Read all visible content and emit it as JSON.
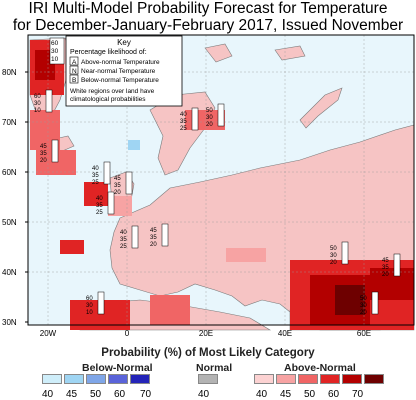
{
  "title": {
    "line1": "IRI Multi-Model Probability Forecast for Temperature",
    "line2": "for December-January-February 2017, Issued November 2016"
  },
  "map": {
    "lat_labels": [
      "80N",
      "70N",
      "60N",
      "50N",
      "40N",
      "30N"
    ],
    "lon_labels": [
      "20W",
      "0",
      "20E",
      "40E",
      "60E"
    ],
    "key": {
      "title": "Key",
      "subtitle": "Percentage likelihood of:",
      "rows": [
        {
          "letter": "A",
          "text": "Above-normal Temperature"
        },
        {
          "letter": "N",
          "text": "Near-normal Temperature"
        },
        {
          "letter": "B",
          "text": "Below-normal Temperature"
        }
      ],
      "note_line1": "White regions over land have",
      "note_line2": "climatological probabilities",
      "sample_values": [
        "60",
        "30",
        "10"
      ]
    },
    "probability_boxes": [
      {
        "a": "60",
        "n": "30",
        "b": "10"
      },
      {
        "a": "45",
        "n": "35",
        "b": "20"
      },
      {
        "a": "40",
        "n": "35",
        "b": "25"
      },
      {
        "a": "45",
        "n": "35",
        "b": "20"
      },
      {
        "a": "40",
        "n": "35",
        "b": "25"
      },
      {
        "a": "40",
        "n": "35",
        "b": "25"
      },
      {
        "a": "45",
        "n": "35",
        "b": "20"
      },
      {
        "a": "50",
        "n": "30",
        "b": "20"
      },
      {
        "a": "40",
        "n": "35",
        "b": "25"
      },
      {
        "a": "50",
        "n": "30",
        "b": "20"
      },
      {
        "a": "45",
        "n": "35",
        "b": "20"
      },
      {
        "a": "50",
        "n": "30",
        "b": "20"
      },
      {
        "a": "60",
        "n": "30",
        "b": "10"
      }
    ]
  },
  "legend": {
    "title": "Probability (%) of Most Likely Category",
    "below_label": "Below-Normal",
    "normal_label": "Normal",
    "above_label": "Above-Normal",
    "below_colors": [
      "#cfeefa",
      "#9fd5f3",
      "#7fa6e8",
      "#5a63d9",
      "#2424b8"
    ],
    "normal_color": "#b3b3b3",
    "above_colors": [
      "#fcd2d2",
      "#f7a3a3",
      "#f06565",
      "#e02424",
      "#b30000",
      "#6e0000"
    ],
    "below_ticks": [
      "40",
      "45",
      "50",
      "60",
      "70"
    ],
    "normal_ticks": [
      "40"
    ],
    "above_ticks": [
      "40",
      "45",
      "50",
      "60",
      "70"
    ]
  }
}
